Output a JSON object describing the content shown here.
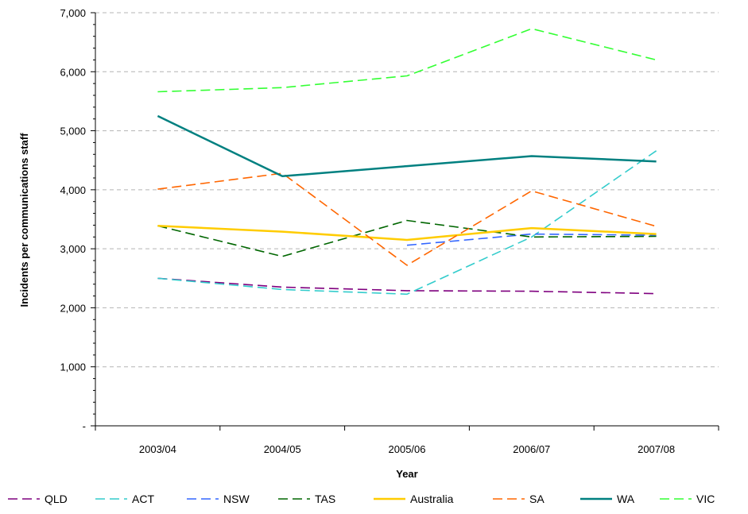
{
  "chart_data": {
    "type": "line",
    "categories": [
      "2003/04",
      "2004/05",
      "2005/06",
      "2006/07",
      "2007/08"
    ],
    "xlabel": "Year",
    "ylabel": "Incidents per communications staff",
    "ylim": [
      0,
      7000
    ],
    "yticks": [
      0,
      1000,
      2000,
      3000,
      4000,
      5000,
      6000,
      7000
    ],
    "ytick_labels": [
      "-",
      "1,000",
      "2,000",
      "3,000",
      "4,000",
      "5,000",
      "6,000",
      "7,000"
    ],
    "grid": true,
    "legend_position": "bottom",
    "series": [
      {
        "name": "QLD",
        "color": "#7f007f",
        "dash": "dashed",
        "values": [
          2500,
          2350,
          2290,
          2280,
          2240
        ]
      },
      {
        "name": "ACT",
        "color": "#33cccc",
        "dash": "dashed",
        "values": [
          2500,
          2310,
          2230,
          3200,
          4660
        ]
      },
      {
        "name": "NSW",
        "color": "#3366ff",
        "dash": "dashed",
        "values": [
          null,
          null,
          3060,
          3250,
          3230
        ]
      },
      {
        "name": "TAS",
        "color": "#006600",
        "dash": "dashed",
        "values": [
          3390,
          2870,
          3480,
          3200,
          3210
        ]
      },
      {
        "name": "Australia",
        "color": "#ffcc00",
        "dash": "solid",
        "values": [
          3390,
          3290,
          3150,
          3350,
          3250
        ]
      },
      {
        "name": "SA",
        "color": "#ff6600",
        "dash": "dashed",
        "values": [
          4010,
          4280,
          2720,
          3980,
          3380
        ]
      },
      {
        "name": "WA",
        "color": "#008080",
        "dash": "solid",
        "values": [
          5250,
          4230,
          4400,
          4570,
          4480
        ]
      },
      {
        "name": "VIC",
        "color": "#33ff33",
        "dash": "dashed",
        "values": [
          5660,
          5730,
          5930,
          6730,
          6200
        ]
      }
    ]
  }
}
